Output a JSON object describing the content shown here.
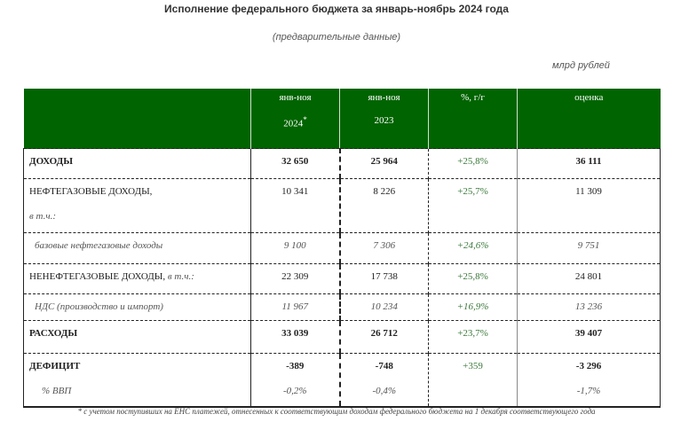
{
  "title": "Исполнение федерального бюджета за январь-ноябрь 2024 года",
  "subtitle": "(предварительные данные)",
  "units": "млрд рублей",
  "header": {
    "col1_l1": "янв-ноя",
    "col1_l2": "2024",
    "col1_mark": "*",
    "col2_l1": "янв-ноя",
    "col2_l2": "2023",
    "col3": "%, г/г",
    "col4": "оценка"
  },
  "rows": [
    {
      "label": "ДОХОДЫ",
      "v2024": "32 650",
      "v2023": "25 964",
      "yoy": "+25,8%",
      "est": "36 111"
    },
    {
      "label": "НЕФТЕГАЗОВЫЕ ДОХОДЫ,",
      "sublabel": "в т.ч.:",
      "v2024": "10 341",
      "v2023": "8 226",
      "yoy": "+25,7%",
      "est": "11 309"
    },
    {
      "label": "базовые нефтегазовые доходы",
      "v2024": "9 100",
      "v2023": "7 306",
      "yoy": "+24,6%",
      "est": "9 751"
    },
    {
      "label": "НЕНЕФТЕГАЗОВЫЕ ДОХОДЫ,",
      "sublabel": "в т.ч.:",
      "v2024": "22 309",
      "v2023": "17 738",
      "yoy": "+25,8%",
      "est": "24 801"
    },
    {
      "label": "НДС (производство и импорт)",
      "v2024": "11 967",
      "v2023": "10 234",
      "yoy": "+16,9%",
      "est": "13 236"
    },
    {
      "label": "РАСХОДЫ",
      "v2024": "33 039",
      "v2023": "26 712",
      "yoy": "+23,7%",
      "est": "39 407"
    },
    {
      "label": "ДЕФИЦИТ",
      "sublabel": "% ВВП",
      "v2024": "-389",
      "v2023": "-748",
      "yoy": "+359",
      "est": "-3 296",
      "gdp2024": "-0,2%",
      "gdp2023": "-0,4%",
      "gdpest": "-1,7%"
    }
  ],
  "footnote": "* с учетом поступивших на ЕНС платежей, отнесенных к соответствующим доходам федерального бюджета на 1 декабря соответствующего года",
  "colors": {
    "header_bg": "#006400",
    "positive": "#3d7a3d"
  }
}
